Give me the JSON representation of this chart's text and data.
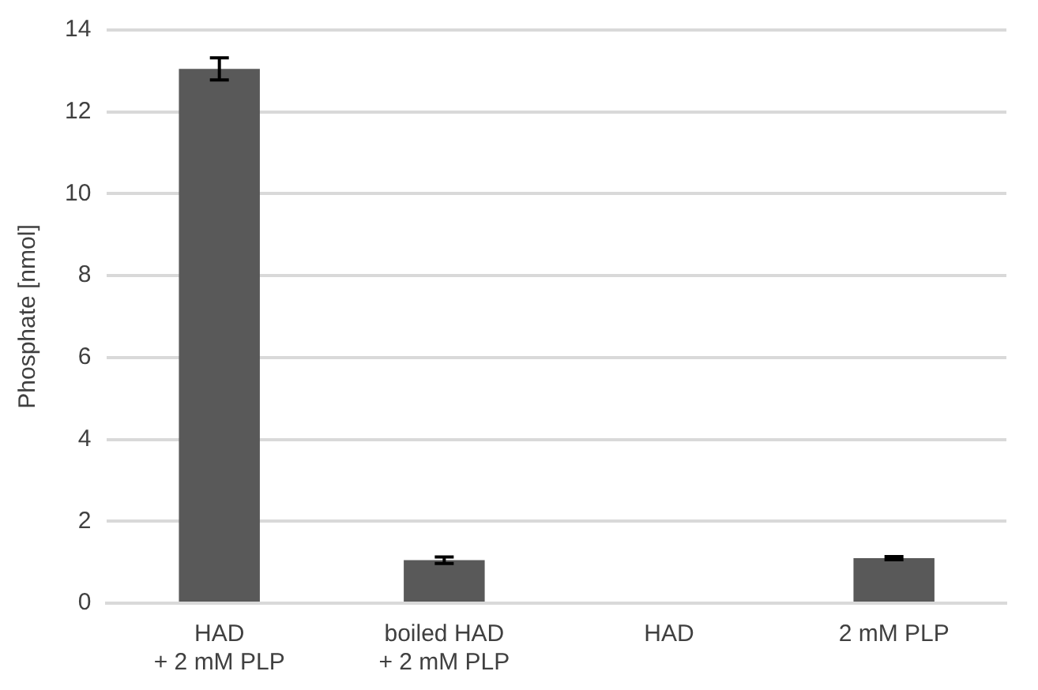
{
  "chart_data": {
    "type": "bar",
    "ylabel": "Phosphate [nmol]",
    "categories": [
      "HAD\n+ 2 mM PLP",
      "boiled HAD\n+ 2 mM PLP",
      "HAD",
      "2 mM PLP"
    ],
    "values": [
      13.05,
      1.05,
      0,
      1.1
    ],
    "errors": [
      0.27,
      0.08,
      null,
      0.04
    ],
    "color": "#595959",
    "ylim": [
      0,
      14
    ],
    "yticks": [
      0,
      2,
      4,
      6,
      8,
      10,
      12,
      14
    ],
    "grid": "y",
    "legend": false
  }
}
